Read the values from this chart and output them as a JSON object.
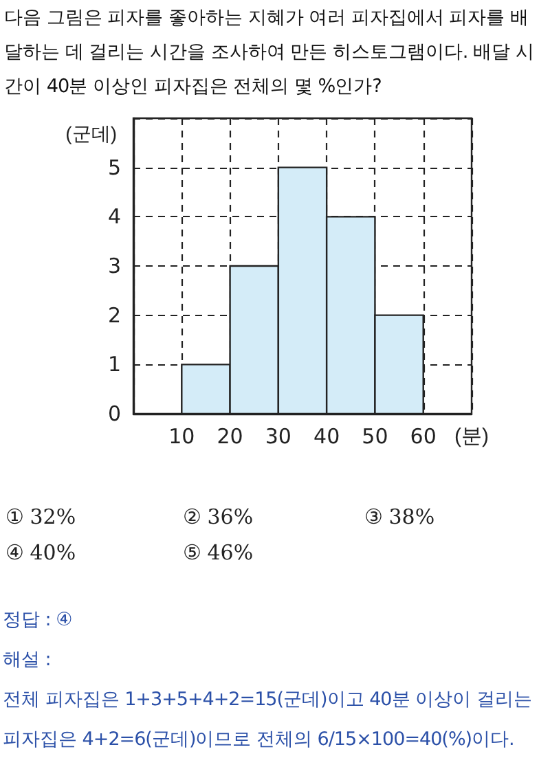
{
  "chart_data": {
    "type": "histogram",
    "title": "다음 그림은 피자를 좋아하는 지혜가 여러 피자집에서 피자를 배달하는 데 걸리는 시간을 조사하여 만든 히스토그램이다. 배달 시간이 40분 이상인 피자집은 전체의 몇 %인가?",
    "xlabel": "(분)",
    "ylabel": "(군데)",
    "bins": [
      10,
      20,
      30,
      40,
      50,
      60
    ],
    "values": [
      1,
      3,
      5,
      4,
      2
    ],
    "color": "#d4ecf8",
    "xlim": [
      0,
      70
    ],
    "xticks": [
      10,
      20,
      30,
      40,
      50,
      60
    ],
    "ylim": [
      0,
      6
    ],
    "yticks": [
      0,
      1,
      2,
      3,
      4,
      5
    ],
    "grid": true,
    "annotations": [
      "① 32%",
      "② 36%",
      "③ 38%",
      "④ 40%",
      "⑤ 46%",
      "정답 : ④",
      "해설 :",
      "전체 피자집은 1+3+5+4+2=15(군데)이고 40분 이상이 걸리는 피자집은 4+2=6(군데)이므로 전체의 6/15×100=40(%)이다."
    ]
  }
}
